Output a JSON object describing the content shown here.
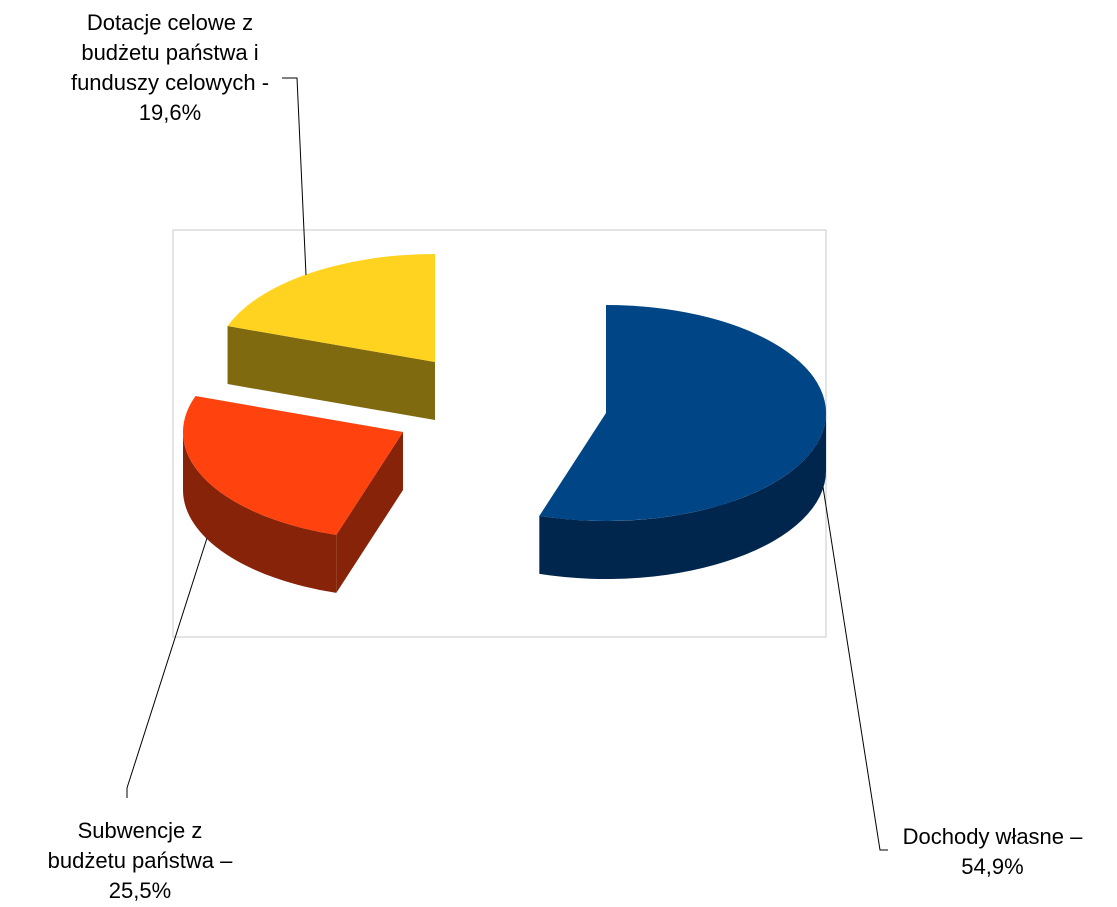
{
  "chart_data": {
    "type": "pie",
    "three_d": true,
    "exploded": true,
    "legend": "none",
    "slices": [
      {
        "label_lines": [
          "Dochody własne –",
          "54,9%"
        ],
        "value": 54.9,
        "colors": {
          "top": "#004586",
          "side": "#00264d"
        }
      },
      {
        "label_lines": [
          "Subwencje z",
          "budżetu państwa –",
          "25,5%"
        ],
        "value": 25.5,
        "colors": {
          "top": "#ff420e",
          "side": "#862308"
        }
      },
      {
        "label_lines": [
          "Dotacje celowe z",
          "budżetu państwa i",
          "funduszy celowych -",
          "19,6%"
        ],
        "value": 19.6,
        "colors": {
          "top": "#ffd320",
          "side": "#806a10"
        }
      }
    ]
  }
}
